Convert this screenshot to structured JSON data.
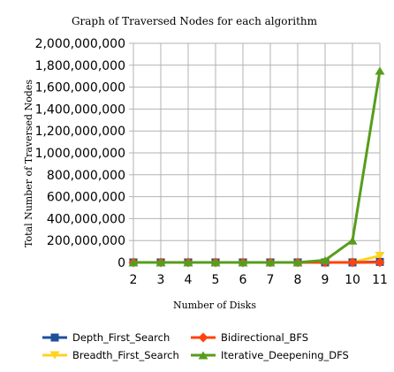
{
  "chart_data": {
    "type": "line",
    "title": "Graph of Traversed Nodes for each algorithm",
    "xlabel": "Number of Disks",
    "ylabel": "Total Number of Traversed Nodes",
    "categories": [
      "2",
      "3",
      "4",
      "5",
      "6",
      "7",
      "8",
      "9",
      "10",
      "11"
    ],
    "ylim": [
      0,
      2000000000
    ],
    "y_ticks": [
      "0",
      "200,000,000",
      "400,000,000",
      "600,000,000",
      "800,000,000",
      "1,000,000,000",
      "1,200,000,000",
      "1,400,000,000",
      "1,600,000,000",
      "1,800,000,000",
      "2,000,000,000"
    ],
    "y_tick_values": [
      0,
      200000000,
      400000000,
      600000000,
      800000000,
      1000000000,
      1200000000,
      1400000000,
      1600000000,
      1800000000,
      2000000000
    ],
    "grid": true,
    "legend_position": "bottom",
    "series": [
      {
        "name": "Depth_First_Search",
        "color": "#1f4e9c",
        "marker": "square",
        "values": [
          0,
          0,
          0,
          0,
          0,
          0,
          0,
          0,
          0,
          5000000
        ]
      },
      {
        "name": "Bidirectional_BFS",
        "color": "#ff420e",
        "marker": "diamond",
        "values": [
          0,
          0,
          0,
          0,
          0,
          0,
          0,
          0,
          0,
          1000000
        ]
      },
      {
        "name": "Breadth_First_Search",
        "color": "#ffd320",
        "marker": "triangle-down",
        "values": [
          0,
          0,
          0,
          0,
          0,
          0,
          0,
          0,
          2000000,
          60000000
        ]
      },
      {
        "name": "Iterative_Deepening_DFS",
        "color": "#579d1c",
        "marker": "triangle-up",
        "values": [
          0,
          0,
          0,
          0,
          0,
          0,
          0,
          20000000,
          200000000,
          1750000000
        ]
      }
    ]
  }
}
